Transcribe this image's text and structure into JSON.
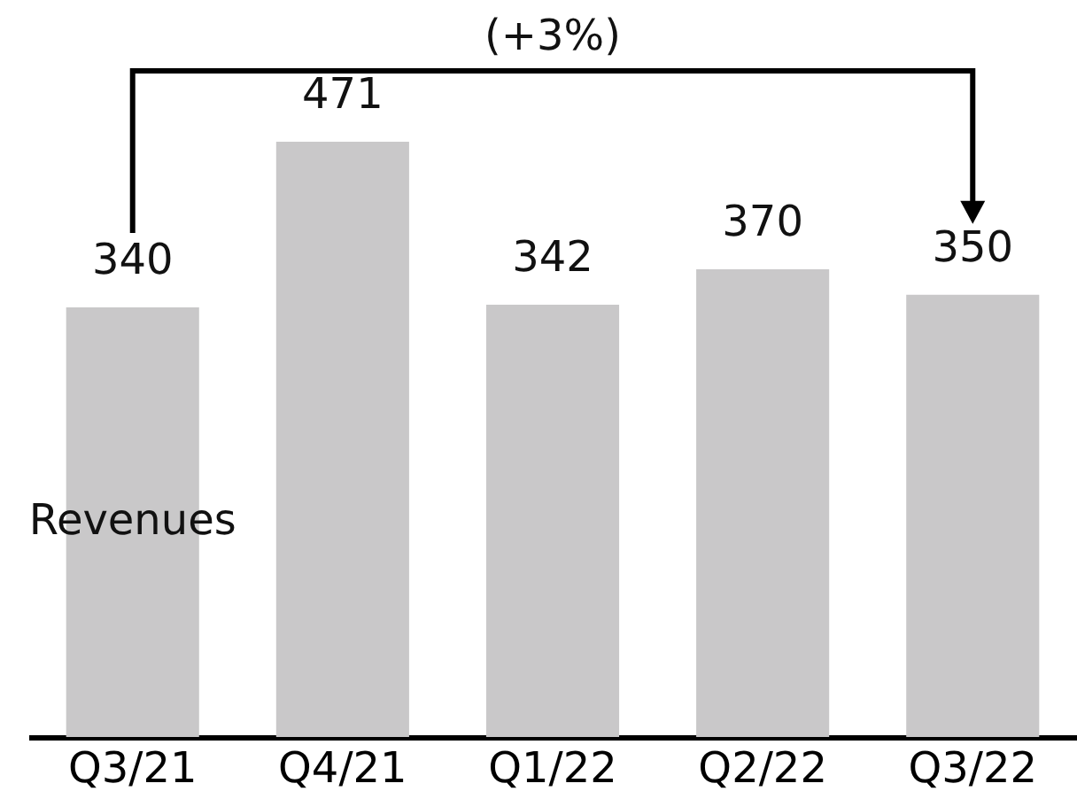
{
  "chart_data": {
    "type": "bar",
    "categories": [
      "Q3/21",
      "Q4/21",
      "Q1/22",
      "Q2/22",
      "Q3/22"
    ],
    "series": [
      {
        "name": "Revenues",
        "color": "#c9c8c9",
        "values": [
          340,
          471,
          342,
          370,
          350
        ]
      }
    ],
    "data_labels": true,
    "annotations": [
      "(+3%)"
    ]
  }
}
